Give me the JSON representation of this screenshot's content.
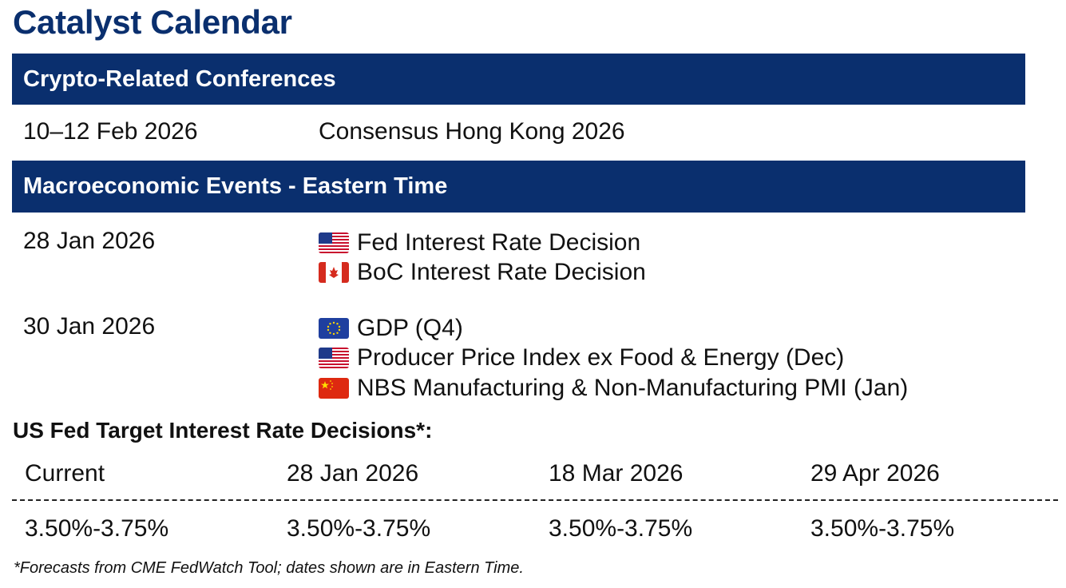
{
  "title": "Catalyst Calendar",
  "colors": {
    "brand_navy": "#0a2f6e"
  },
  "conferences": {
    "heading": "Crypto-Related Conferences",
    "rows": [
      {
        "date": "10–12 Feb 2026",
        "event": "Consensus Hong Kong 2026"
      }
    ]
  },
  "macro": {
    "heading": "Macroeconomic Events - Eastern Time",
    "groups": [
      {
        "date": "28 Jan 2026",
        "events": [
          {
            "flag": "us-flag-icon",
            "label": "Fed Interest Rate Decision"
          },
          {
            "flag": "canada-flag-icon",
            "label": "BoC Interest Rate Decision"
          }
        ]
      },
      {
        "date": "30 Jan 2026",
        "events": [
          {
            "flag": "eu-flag-icon",
            "label": "GDP (Q4)"
          },
          {
            "flag": "us-flag-icon",
            "label": "Producer Price Index ex Food & Energy (Dec)"
          },
          {
            "flag": "china-flag-icon",
            "label": "NBS Manufacturing & Non-Manufacturing PMI (Jan)"
          }
        ]
      }
    ]
  },
  "fed": {
    "heading": "US Fed Target Interest Rate Decisions*:",
    "columns": [
      {
        "label": "Current",
        "value": "3.50%-3.75%"
      },
      {
        "label": "28 Jan 2026",
        "value": "3.50%-3.75%"
      },
      {
        "label": "18 Mar 2026",
        "value": "3.50%-3.75%"
      },
      {
        "label": "29 Apr 2026",
        "value": "3.50%-3.75%"
      }
    ]
  },
  "footnote": "*Forecasts from CME FedWatch Tool; dates shown are in Eastern Time."
}
